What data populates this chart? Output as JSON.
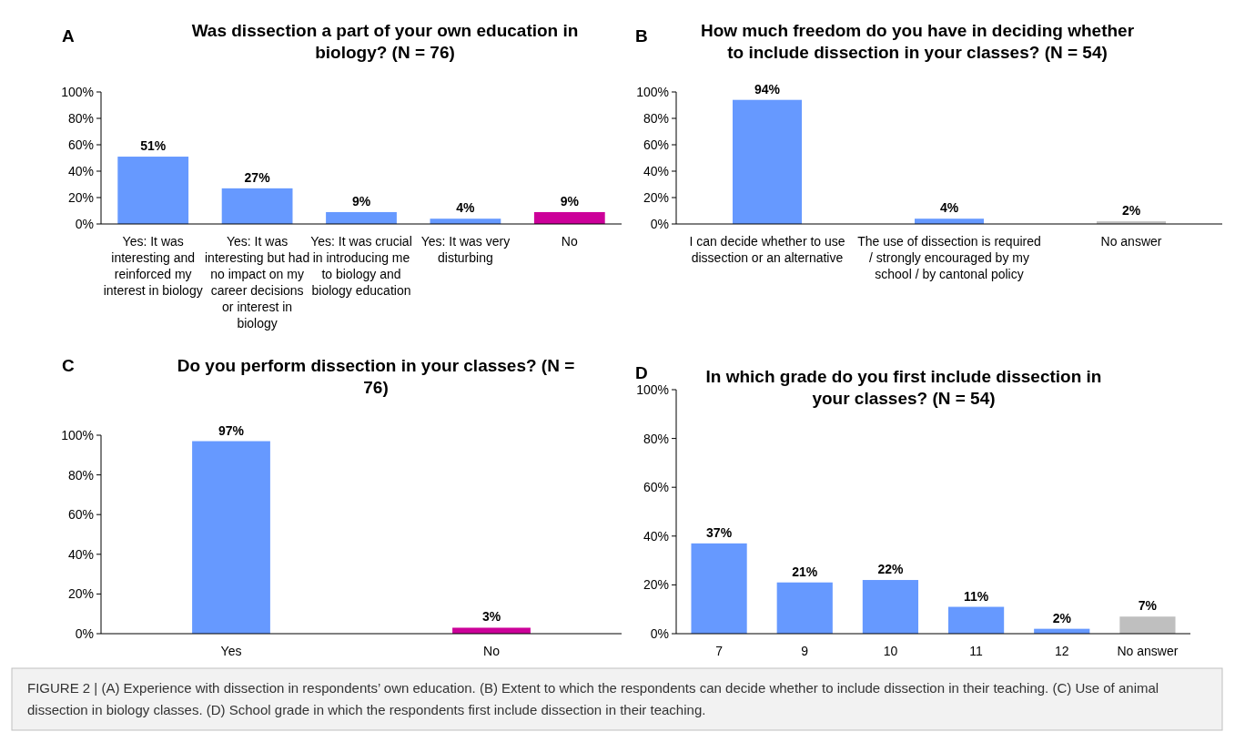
{
  "chart_data": [
    {
      "type": "bar",
      "title": "Was dissection a part of your own education in biology? (N = 76)",
      "annotations": [
        "A"
      ],
      "categories": [
        "Yes: It was interesting and reinforced my interest in biology",
        "Yes: It was interesting but had no impact on my career decisions or interest in biology",
        "Yes: It was crucial in introducing me to biology and biology education",
        "Yes: It was very disturbing",
        "No"
      ],
      "values": [
        51,
        27,
        9,
        4,
        9
      ],
      "colors": [
        "#6699ff",
        "#6699ff",
        "#6699ff",
        "#6699ff",
        "#cc0099"
      ],
      "value_labels": [
        "51%",
        "27%",
        "9%",
        "4%",
        "9%"
      ],
      "ylim": [
        0,
        100
      ],
      "yticks": [
        {
          "value": 0,
          "label": "0%"
        },
        {
          "value": 20,
          "label": "20%"
        },
        {
          "value": 40,
          "label": "40%"
        },
        {
          "value": 60,
          "label": "60%"
        },
        {
          "value": 80,
          "label": "80%"
        },
        {
          "value": 100,
          "label": "100%"
        }
      ],
      "grid": false
    },
    {
      "type": "bar",
      "title": "How much freedom do you have in deciding whether to include dissection in your classes? (N = 54)",
      "annotations": [
        "B"
      ],
      "categories": [
        "I can decide whether to use dissection or an alternative",
        "The use of dissection is required / strongly encouraged by my school / by cantonal policy",
        "No answer"
      ],
      "values": [
        94,
        4,
        2
      ],
      "colors": [
        "#6699ff",
        "#6699ff",
        "#bfbfbf"
      ],
      "value_labels": [
        "94%",
        "4%",
        "2%"
      ],
      "ylim": [
        0,
        100
      ],
      "yticks": [
        {
          "value": 0,
          "label": "0%"
        },
        {
          "value": 20,
          "label": "20%"
        },
        {
          "value": 40,
          "label": "40%"
        },
        {
          "value": 60,
          "label": "60%"
        },
        {
          "value": 80,
          "label": "80%"
        },
        {
          "value": 100,
          "label": "100%"
        }
      ],
      "grid": false
    },
    {
      "type": "bar",
      "title": "Do you perform dissection in your classes? (N = 76)",
      "annotations": [
        "C"
      ],
      "categories": [
        "Yes",
        "No"
      ],
      "values": [
        97,
        3
      ],
      "colors": [
        "#6699ff",
        "#cc0099"
      ],
      "value_labels": [
        "97%",
        "3%"
      ],
      "ylim": [
        0,
        100
      ],
      "yticks": [
        {
          "value": 0,
          "label": "0%"
        },
        {
          "value": 20,
          "label": "20%"
        },
        {
          "value": 40,
          "label": "40%"
        },
        {
          "value": 60,
          "label": "60%"
        },
        {
          "value": 80,
          "label": "80%"
        },
        {
          "value": 100,
          "label": "100%"
        }
      ],
      "grid": false
    },
    {
      "type": "bar",
      "title": "In which grade do you first include dissection in your classes? (N = 54)",
      "annotations": [
        "D",
        "FIGURE 2 | (A) Experience with dissection in respondents’ own education. (B) Extent to which the respondents can decide whether to include dissection in their teaching. (C) Use of animal dissection in biology classes. (D) School grade in which the respondents first include dissection in their teaching."
      ],
      "categories": [
        "7",
        "9",
        "10",
        "11",
        "12",
        "No answer"
      ],
      "values": [
        37,
        21,
        22,
        11,
        2,
        7
      ],
      "colors": [
        "#6699ff",
        "#6699ff",
        "#6699ff",
        "#6699ff",
        "#6699ff",
        "#bfbfbf"
      ],
      "value_labels": [
        "37%",
        "21%",
        "22%",
        "11%",
        "2%",
        "7%"
      ],
      "ylim": [
        0,
        100
      ],
      "yticks": [
        {
          "value": 0,
          "label": "0%"
        },
        {
          "value": 20,
          "label": "20%"
        },
        {
          "value": 40,
          "label": "40%"
        },
        {
          "value": 60,
          "label": "60%"
        },
        {
          "value": 80,
          "label": "80%"
        },
        {
          "value": 100,
          "label": "100%"
        }
      ],
      "grid": false
    }
  ]
}
